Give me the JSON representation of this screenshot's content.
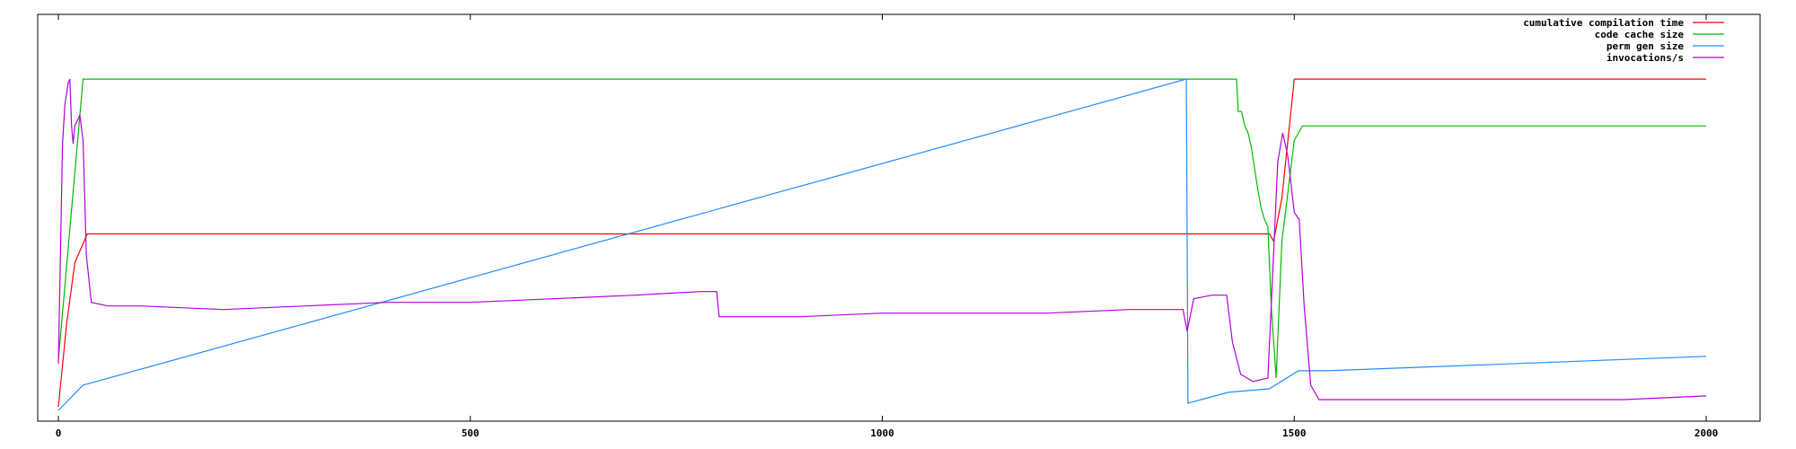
{
  "chart_data": {
    "type": "line",
    "title": "",
    "xlabel": "",
    "ylabel": "",
    "xlim": [
      0,
      2000
    ],
    "ylim": [
      0,
      100
    ],
    "grid": false,
    "legend_position": "top-right",
    "x_ticks": [
      {
        "value": 0,
        "label": "0"
      },
      {
        "value": 500,
        "label": "500"
      },
      {
        "value": 1000,
        "label": "1000"
      },
      {
        "value": 1500,
        "label": "1500"
      },
      {
        "value": 2000,
        "label": "2000"
      }
    ],
    "series": [
      {
        "name": "cumulative compilation time",
        "color": "#ff0000",
        "points": [
          [
            0,
            2
          ],
          [
            10,
            25
          ],
          [
            20,
            42
          ],
          [
            35,
            50
          ],
          [
            500,
            50
          ],
          [
            1000,
            50
          ],
          [
            1470,
            50
          ],
          [
            1475,
            48
          ],
          [
            1485,
            60
          ],
          [
            1500,
            93
          ],
          [
            2000,
            93
          ]
        ]
      },
      {
        "name": "code cache size",
        "color": "#00bb00",
        "points": [
          [
            0,
            15
          ],
          [
            25,
            80
          ],
          [
            30,
            93
          ],
          [
            1430,
            93
          ],
          [
            1432,
            84
          ],
          [
            1436,
            84
          ],
          [
            1440,
            80
          ],
          [
            1444,
            78
          ],
          [
            1448,
            74
          ],
          [
            1452,
            68
          ],
          [
            1456,
            62
          ],
          [
            1460,
            57
          ],
          [
            1464,
            54
          ],
          [
            1468,
            52
          ],
          [
            1472,
            30
          ],
          [
            1478,
            10
          ],
          [
            1485,
            48
          ],
          [
            1500,
            76
          ],
          [
            1510,
            80
          ],
          [
            2000,
            80
          ]
        ]
      },
      {
        "name": "perm gen size",
        "color": "#1e8cff",
        "points": [
          [
            0,
            1
          ],
          [
            30,
            8
          ],
          [
            1369,
            93
          ],
          [
            1371,
            3
          ],
          [
            1420,
            6
          ],
          [
            1470,
            7
          ],
          [
            1505,
            12
          ],
          [
            1540,
            12
          ],
          [
            2000,
            16
          ]
        ]
      },
      {
        "name": "invocations/s",
        "color": "#b000e0",
        "points": [
          [
            0,
            14
          ],
          [
            5,
            75
          ],
          [
            8,
            86
          ],
          [
            12,
            92
          ],
          [
            14,
            93
          ],
          [
            16,
            80
          ],
          [
            18,
            75
          ],
          [
            20,
            80
          ],
          [
            26,
            83
          ],
          [
            30,
            76
          ],
          [
            34,
            44
          ],
          [
            40,
            31
          ],
          [
            60,
            30
          ],
          [
            100,
            30
          ],
          [
            200,
            29
          ],
          [
            300,
            30
          ],
          [
            400,
            31
          ],
          [
            500,
            31
          ],
          [
            600,
            32
          ],
          [
            700,
            33
          ],
          [
            780,
            34
          ],
          [
            799,
            34
          ],
          [
            802,
            27
          ],
          [
            900,
            27
          ],
          [
            1000,
            28
          ],
          [
            1100,
            28
          ],
          [
            1200,
            28
          ],
          [
            1300,
            29
          ],
          [
            1365,
            29
          ],
          [
            1370,
            23
          ],
          [
            1378,
            32
          ],
          [
            1400,
            33
          ],
          [
            1418,
            33
          ],
          [
            1425,
            20
          ],
          [
            1435,
            11
          ],
          [
            1450,
            9
          ],
          [
            1468,
            10
          ],
          [
            1472,
            30
          ],
          [
            1480,
            70
          ],
          [
            1486,
            78
          ],
          [
            1492,
            72
          ],
          [
            1500,
            56
          ],
          [
            1506,
            54
          ],
          [
            1512,
            30
          ],
          [
            1520,
            8
          ],
          [
            1530,
            4
          ],
          [
            1600,
            4
          ],
          [
            1700,
            4
          ],
          [
            1800,
            4
          ],
          [
            1900,
            4
          ],
          [
            2000,
            5
          ]
        ]
      }
    ]
  }
}
